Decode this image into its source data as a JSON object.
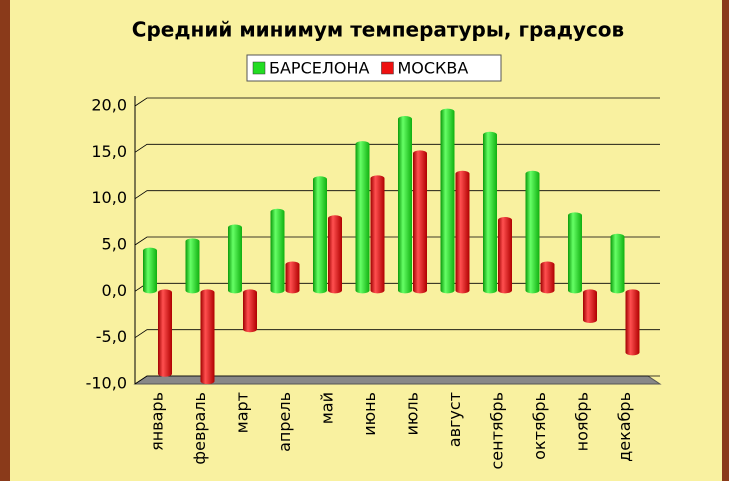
{
  "chart_data": {
    "type": "bar",
    "title": "Средний минимум температуры, градусов",
    "categories": [
      "январь",
      "февраль",
      "март",
      "апрель",
      "май",
      "июнь",
      "июль",
      "август",
      "сентябрь",
      "октябрь",
      "ноябрь",
      "декабрь"
    ],
    "series": [
      {
        "name": "БАРСЕЛОНА",
        "color": "#22dd22",
        "values": [
          4.5,
          5.5,
          7,
          8.7,
          12.2,
          16,
          18.7,
          19.5,
          17,
          12.8,
          8.3,
          6
        ]
      },
      {
        "name": "МОСКВА",
        "color": "#ee1111",
        "values": [
          -9,
          -9.8,
          -4.2,
          3,
          8,
          12.3,
          15,
          12.8,
          7.8,
          3,
          -3.2,
          -6.7
        ]
      }
    ],
    "ylim": [
      -10,
      20
    ],
    "yticks": [
      {
        "value": -10,
        "label": "-10,0"
      },
      {
        "value": -5,
        "label": "-5,0"
      },
      {
        "value": 0,
        "label": "0,0"
      },
      {
        "value": 5,
        "label": "5,0"
      },
      {
        "value": 10,
        "label": "10,0"
      },
      {
        "value": 15,
        "label": "15,0"
      },
      {
        "value": 20,
        "label": "20,0"
      }
    ],
    "grid": true,
    "legend": "top"
  }
}
